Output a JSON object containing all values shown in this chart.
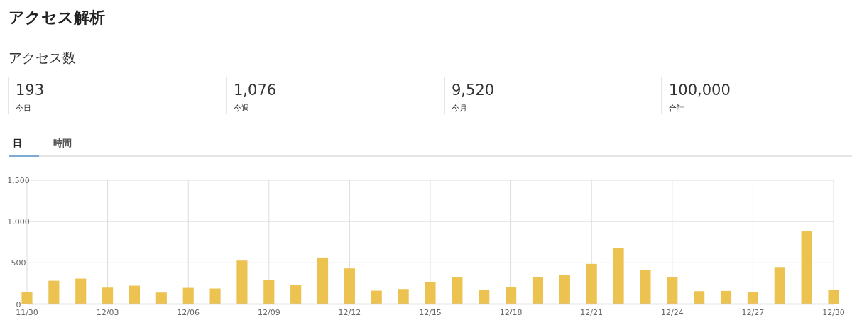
{
  "chart_data": {
    "type": "bar",
    "title": "アクセス解析",
    "subtitle": "アクセス数",
    "annotations": [
      "193",
      "今日",
      "1,076",
      "今週",
      "9,520",
      "今月",
      "100,000",
      "合計",
      "日",
      "時間"
    ],
    "categories": [
      "11/30",
      null,
      null,
      "12/03",
      null,
      null,
      "12/06",
      null,
      null,
      "12/09",
      null,
      null,
      "12/12",
      null,
      null,
      "12/15",
      null,
      null,
      "12/18",
      null,
      null,
      "12/21",
      null,
      null,
      "12/24",
      null,
      null,
      "12/27",
      null,
      null,
      "12/30"
    ],
    "values": [
      143,
      283,
      309,
      200,
      223,
      140,
      197,
      189,
      527,
      292,
      235,
      564,
      432,
      163,
      183,
      269,
      329,
      175,
      203,
      329,
      355,
      487,
      681,
      415,
      329,
      157,
      160,
      149,
      449,
      881,
      172
    ],
    "color": "#ecc351",
    "ylim": [
      0,
      1500
    ],
    "yticks": [
      0,
      500,
      {
        "value": 1000,
        "label": "1,000"
      },
      {
        "value": 1500,
        "label": "1,500"
      }
    ],
    "grid": true
  }
}
